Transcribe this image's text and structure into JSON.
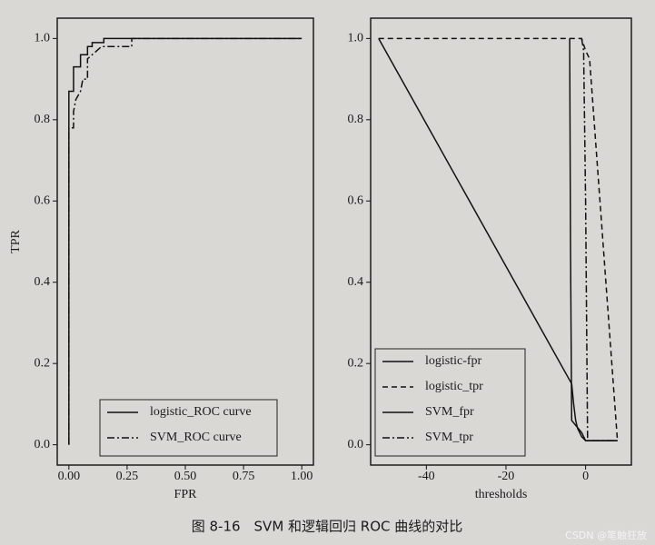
{
  "chart_data": [
    {
      "type": "line",
      "xlabel": "FPR",
      "ylabel": "TPR",
      "xlim": [
        -0.05,
        1.05
      ],
      "ylim": [
        -0.05,
        1.05
      ],
      "xticks": [
        {
          "value": 0,
          "label": "0.00"
        },
        {
          "value": 0.25,
          "label": "0.25"
        },
        {
          "value": 0.5,
          "label": "0.50"
        },
        {
          "value": 0.75,
          "label": "0.75"
        },
        {
          "value": 1,
          "label": "1.00"
        }
      ],
      "yticks": [
        {
          "value": 0,
          "label": "0.0"
        },
        0.2,
        0.4,
        0.6,
        0.8,
        {
          "value": 1,
          "label": "1.0"
        }
      ],
      "legend": "lower right",
      "series": [
        {
          "name": "logistic_ROC curve",
          "color": "#111111",
          "dash": "solid",
          "x": [
            0,
            0,
            0.02,
            0.02,
            0.05,
            0.05,
            0.08,
            0.08,
            0.1,
            0.1,
            0.15,
            0.15,
            1
          ],
          "values": [
            0,
            0.87,
            0.87,
            0.93,
            0.93,
            0.96,
            0.96,
            0.98,
            0.98,
            0.99,
            0.99,
            1,
            1
          ]
        },
        {
          "name": "SVM_ROC curve",
          "color": "#111111",
          "dash": "dashdot",
          "x": [
            0,
            0,
            0.02,
            0.02,
            0.03,
            0.05,
            0.06,
            0.08,
            0.08,
            0.12,
            0.14,
            0.27,
            0.27,
            1
          ],
          "values": [
            0,
            0.78,
            0.78,
            0.82,
            0.85,
            0.87,
            0.9,
            0.9,
            0.95,
            0.97,
            0.98,
            0.98,
            1,
            1
          ]
        }
      ]
    },
    {
      "type": "line",
      "xlabel": "thresholds",
      "xlim": [
        -54,
        11.5
      ],
      "ylim": [
        -0.05,
        1.05
      ],
      "xticks": [
        -40,
        -20,
        0
      ],
      "yticks": [
        {
          "value": 0,
          "label": "0.0"
        },
        0.2,
        0.4,
        0.6,
        0.8,
        {
          "value": 1,
          "label": "1.0"
        }
      ],
      "legend": "lower left",
      "series": [
        {
          "name": "logistic-fpr",
          "color": "#111111",
          "dash": "solid",
          "x": [
            -52,
            -3.5,
            -3,
            -2.5,
            -2,
            -1,
            0,
            8
          ],
          "values": [
            1,
            0.15,
            0.1,
            0.06,
            0.04,
            0.02,
            0.01,
            0.01
          ]
        },
        {
          "name": "logistic_tpr",
          "color": "#111111",
          "dash": "dashed",
          "x": [
            -52,
            -1,
            0,
            1,
            8
          ],
          "values": [
            1,
            1,
            0.97,
            0.95,
            0.01
          ]
        },
        {
          "name": "SVM_fpr",
          "color": "#111111",
          "dash": "solid",
          "x": [
            -4,
            -3.8,
            -3.5,
            -1,
            0,
            8
          ],
          "values": [
            1,
            0.5,
            0.06,
            0.03,
            0.01,
            0.01
          ]
        },
        {
          "name": "SVM_tpr",
          "color": "#111111",
          "dash": "dashdot",
          "x": [
            -1,
            -0.5,
            0,
            0.5,
            8
          ],
          "values": [
            1,
            0.97,
            0.6,
            0.01,
            0.01
          ]
        }
      ]
    }
  ],
  "caption": "图 8-16　SVM 和逻辑回归 ROC 曲线的对比",
  "watermark": "CSDN @笔触狂放"
}
